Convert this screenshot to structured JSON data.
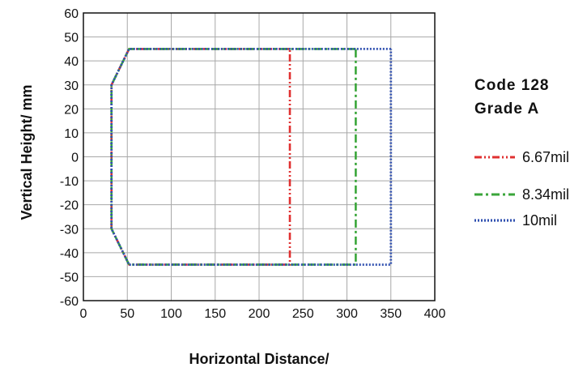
{
  "chart_data": {
    "type": "line",
    "title": "",
    "xlabel": "Horizontal Distance/",
    "ylabel": "Vertical Height/ mm",
    "xlim": [
      0,
      400
    ],
    "ylim": [
      -60,
      60
    ],
    "xticks": [
      0,
      50,
      100,
      150,
      200,
      250,
      300,
      350,
      400
    ],
    "yticks": [
      60,
      50,
      40,
      30,
      20,
      10,
      0,
      -10,
      -20,
      -30,
      -40,
      -50,
      -60
    ],
    "grid": true,
    "legend_placement": "right",
    "legend_heading": [
      "Code 128",
      "Grade A"
    ],
    "series": [
      {
        "name": "6.67mil",
        "color": "#e03030",
        "dash": "dash-dot-dot",
        "x": [
          235,
          52,
          32,
          32,
          52,
          235,
          235
        ],
        "y": [
          45,
          45,
          30,
          -30,
          -45,
          -45,
          45
        ]
      },
      {
        "name": "8.34mil",
        "color": "#3aa63a",
        "dash": "dash-dot",
        "x": [
          310,
          52,
          32,
          32,
          52,
          310,
          310
        ],
        "y": [
          45,
          45,
          30,
          -30,
          -45,
          -45,
          45
        ]
      },
      {
        "name": "10mil",
        "color": "#3050b0",
        "dash": "dotted",
        "x": [
          350,
          52,
          32,
          32,
          52,
          350,
          350
        ],
        "y": [
          45,
          45,
          30,
          -30,
          -45,
          -45,
          45
        ]
      }
    ]
  }
}
